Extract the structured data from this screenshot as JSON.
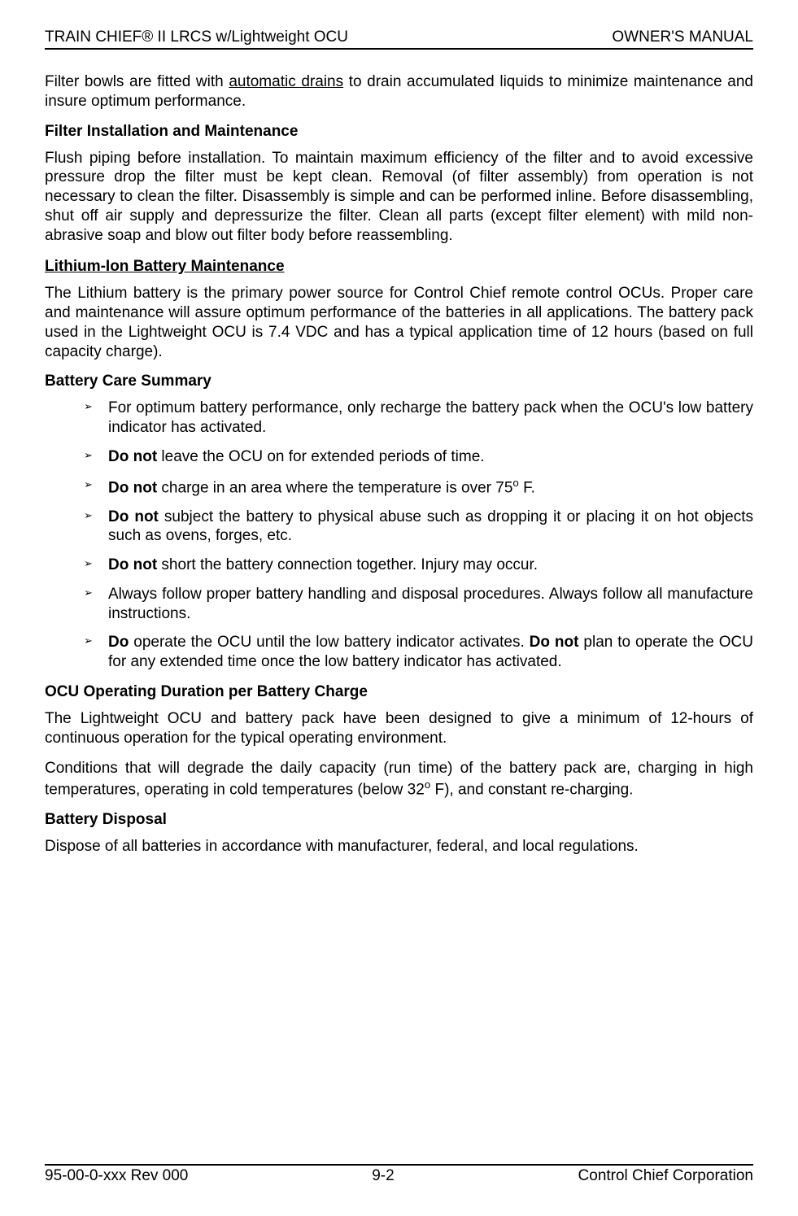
{
  "header": {
    "left": "TRAIN CHIEF® II LRCS w/Lightweight OCU",
    "right": "OWNER'S MANUAL"
  },
  "para1_pre": "Filter bowls are fitted with ",
  "para1_underlined": "automatic drains",
  "para1_post": " to drain accumulated liquids to minimize maintenance and insure optimum performance.",
  "heading1": "Filter Installation and Maintenance",
  "para2": "Flush piping before installation.  To maintain maximum efficiency of the filter and to avoid excessive pressure drop the filter must be kept clean.  Removal (of filter assembly) from operation is not necessary to clean the filter.  Disassembly is simple and can be performed inline.  Before disassembling, shut off air supply and depressurize the filter.  Clean all parts (except filter element) with mild non-abrasive soap and blow out filter body before reassembling.",
  "heading2": "Lithium-Ion Battery Maintenance",
  "para3": "The Lithium battery is the primary power source for Control Chief remote control OCUs.  Proper care and maintenance will assure optimum performance of the batteries in all applications.  The battery pack used in the Lightweight OCU is 7.4 VDC and has a typical application time of 12 hours (based on full capacity charge).",
  "heading3": "Battery Care Summary",
  "bullets": {
    "b1": "For optimum battery performance, only recharge the battery pack when the OCU's low battery indicator has activated.",
    "b2_bold": "Do not",
    "b2_rest": " leave the OCU on for extended periods of time.",
    "b3_bold": "Do not",
    "b3_rest_pre": " charge in an area where the temperature is over 75",
    "b3_rest_post": " F.",
    "b4_bold": "Do not",
    "b4_rest": " subject the battery to physical abuse such as dropping it or placing it on hot objects such as ovens, forges, etc.",
    "b5_bold": "Do not",
    "b5_rest": " short the battery connection together. Injury may occur.",
    "b6": "Always follow proper battery handling and disposal procedures. Always follow all manufacture instructions.",
    "b7_bold1": "Do",
    "b7_mid": " operate the OCU until the low battery indicator activates. ",
    "b7_bold2": "Do not",
    "b7_rest": " plan to operate the OCU for any extended time once the low battery indicator has activated."
  },
  "heading4": "OCU Operating Duration per Battery Charge",
  "para4": "The Lightweight OCU and battery pack have been designed to give a minimum of 12-hours of continuous operation for the typical operating environment.",
  "para5_pre": "Conditions that will degrade the daily capacity (run time) of the battery pack are, charging in high temperatures, operating in cold temperatures (below 32",
  "para5_post": " F), and constant re-charging.",
  "heading5": "Battery Disposal",
  "para6": "Dispose of all batteries in accordance with manufacturer, federal, and local regulations.",
  "footer": {
    "left": "95-00-0-xxx Rev 000",
    "center": "9-2",
    "right": "Control Chief Corporation"
  },
  "sup_o": "o"
}
